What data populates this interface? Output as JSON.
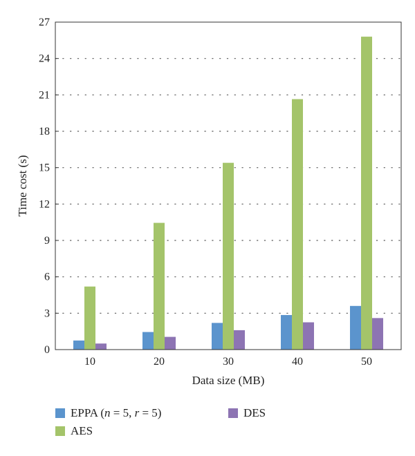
{
  "chart_data": {
    "type": "bar",
    "categories": [
      "10",
      "20",
      "30",
      "40",
      "50"
    ],
    "series": [
      {
        "name": "EPPA (n = 5, r = 5)",
        "name_parts": [
          {
            "t": "EPPA ("
          },
          {
            "t": "n",
            "i": true
          },
          {
            "t": " = 5, "
          },
          {
            "t": "r",
            "i": true
          },
          {
            "t": " = 5)"
          }
        ],
        "color": "#5b94cd",
        "values": [
          0.75,
          1.45,
          2.2,
          2.85,
          3.6
        ]
      },
      {
        "name": "AES",
        "color": "#a4c46a",
        "values": [
          5.2,
          10.45,
          15.4,
          20.65,
          25.8
        ]
      },
      {
        "name": "DES",
        "color": "#8d74b3",
        "values": [
          0.5,
          1.05,
          1.6,
          2.25,
          2.6
        ]
      }
    ],
    "xlabel": "Data size (MB)",
    "ylabel": "Time cost (s)",
    "ylim": [
      0,
      27
    ],
    "yticks": [
      "0",
      "3",
      "6",
      "9",
      "12",
      "15",
      "18",
      "21",
      "24",
      "27"
    ],
    "grid": "horizontal-dotted",
    "legend_position": "bottom"
  }
}
